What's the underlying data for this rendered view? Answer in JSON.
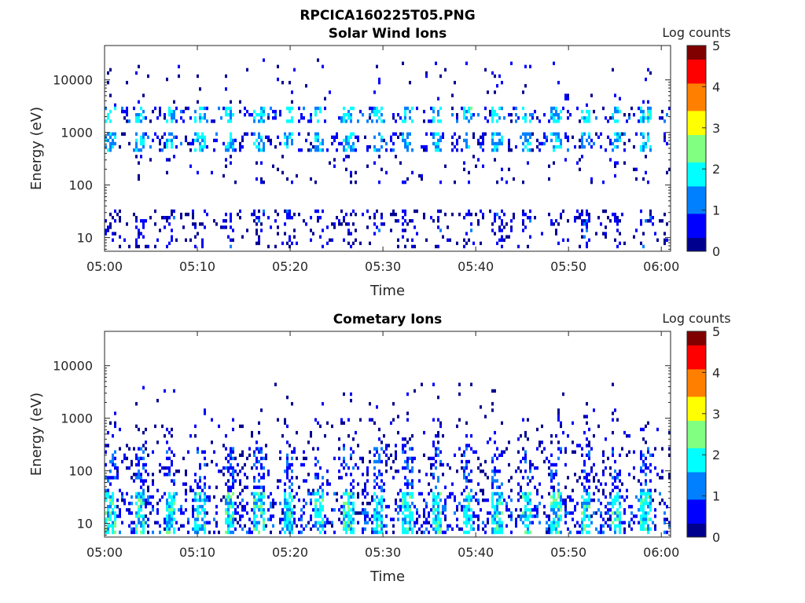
{
  "figure_title": "RPCICA160225T05.PNG",
  "colormap": [
    "#00008f",
    "#0000ff",
    "#0080ff",
    "#00ffff",
    "#80ff80",
    "#ffff00",
    "#ff8000",
    "#ff0000",
    "#800000"
  ],
  "chart_data": [
    {
      "type": "heatmap",
      "title": "Solar Wind Ions",
      "xlabel": "Time",
      "ylabel": "Energy (eV)",
      "y_scale": "log",
      "xlim": [
        "05:00",
        "06:01"
      ],
      "ylim": [
        5.5,
        45000
      ],
      "x_ticks": [
        "05:00",
        "05:10",
        "05:20",
        "05:30",
        "05:40",
        "05:50",
        "06:00"
      ],
      "y_ticks": [
        10,
        100,
        1000,
        10000
      ],
      "y_tick_labels": [
        "10",
        "100",
        "1000",
        "10000"
      ],
      "colorbar": {
        "label": "Log counts",
        "range": [
          0,
          5
        ],
        "ticks": [
          "0",
          "1",
          "2",
          "3",
          "4",
          "5"
        ]
      },
      "bands": [
        {
          "e_lo": 420,
          "e_hi": 1000,
          "level": 1.5,
          "density": 0.55
        },
        {
          "e_lo": 1500,
          "e_hi": 3000,
          "level": 1.7,
          "density": 0.5
        },
        {
          "e_lo": 3000,
          "e_hi": 25000,
          "level": 0.3,
          "density": 0.03
        },
        {
          "e_lo": 100,
          "e_hi": 400,
          "level": 0.4,
          "density": 0.08
        },
        {
          "e_lo": 16,
          "e_hi": 35,
          "level": 0.5,
          "density": 0.35
        },
        {
          "e_lo": 6,
          "e_hi": 16,
          "level": 0.5,
          "density": 0.18
        }
      ],
      "cycle_minutes": 3.2
    },
    {
      "type": "heatmap",
      "title": "Cometary Ions",
      "xlabel": "Time",
      "ylabel": "Energy (eV)",
      "y_scale": "log",
      "xlim": [
        "05:00",
        "06:01"
      ],
      "ylim": [
        5.5,
        45000
      ],
      "x_ticks": [
        "05:00",
        "05:10",
        "05:20",
        "05:30",
        "05:40",
        "05:50",
        "06:00"
      ],
      "y_ticks": [
        10,
        100,
        1000,
        10000
      ],
      "y_tick_labels": [
        "10",
        "100",
        "1000",
        "10000"
      ],
      "colorbar": {
        "label": "Log counts",
        "range": [
          0,
          5
        ],
        "ticks": [
          "0",
          "1",
          "2",
          "3",
          "4",
          "5"
        ]
      },
      "bands": [
        {
          "e_lo": 6,
          "e_hi": 40,
          "level": 1.8,
          "density": 0.7
        },
        {
          "e_lo": 40,
          "e_hi": 300,
          "level": 0.8,
          "density": 0.35
        },
        {
          "e_lo": 300,
          "e_hi": 1000,
          "level": 0.3,
          "density": 0.12
        },
        {
          "e_lo": 1000,
          "e_hi": 5000,
          "level": 0.2,
          "density": 0.03
        }
      ],
      "cycle_minutes": 3.2
    }
  ]
}
